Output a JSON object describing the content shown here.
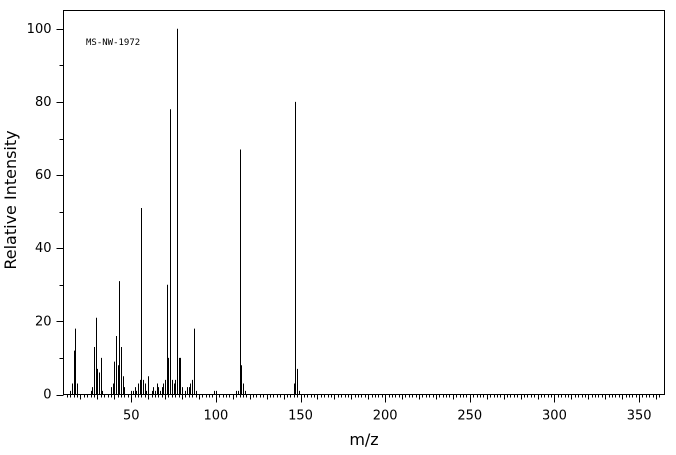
{
  "chart_data": {
    "type": "bar",
    "title": "",
    "annotation": "MS-NW-1972",
    "xlabel": "m/z",
    "ylabel": "Relative Intensity",
    "xlim": [
      10,
      365
    ],
    "ylim": [
      0,
      105
    ],
    "xticks_major": [
      50,
      100,
      150,
      200,
      250,
      300,
      350
    ],
    "yticks_major": [
      0,
      20,
      40,
      60,
      80,
      100
    ],
    "x": [
      14,
      15,
      16,
      17,
      18,
      26,
      27,
      28,
      29,
      30,
      31,
      32,
      33,
      38,
      39,
      40,
      41,
      42,
      43,
      44,
      45,
      46,
      50,
      51,
      52,
      53,
      54,
      55,
      56,
      57,
      58,
      59,
      60,
      62,
      63,
      64,
      65,
      66,
      67,
      68,
      69,
      70,
      71,
      72,
      73,
      74,
      75,
      76,
      77,
      78,
      79,
      80,
      82,
      83,
      84,
      85,
      86,
      87,
      88,
      99,
      100,
      112,
      113,
      114,
      115,
      116,
      117,
      146,
      147,
      148,
      149
    ],
    "y": [
      1,
      3,
      12,
      18,
      3,
      1,
      2,
      13,
      21,
      7,
      6,
      10,
      1,
      2,
      3,
      9,
      16,
      8,
      31,
      13,
      5,
      2,
      1,
      1,
      2,
      1,
      3,
      4,
      51,
      4,
      3,
      1,
      5,
      1,
      2,
      1,
      3,
      2,
      1,
      2,
      3,
      4,
      30,
      10,
      78,
      4,
      3,
      4,
      100,
      10,
      10,
      2,
      1,
      2,
      2,
      3,
      4,
      18,
      1,
      1,
      1,
      1,
      1,
      67,
      8,
      3,
      1,
      3,
      80,
      7,
      1
    ]
  }
}
